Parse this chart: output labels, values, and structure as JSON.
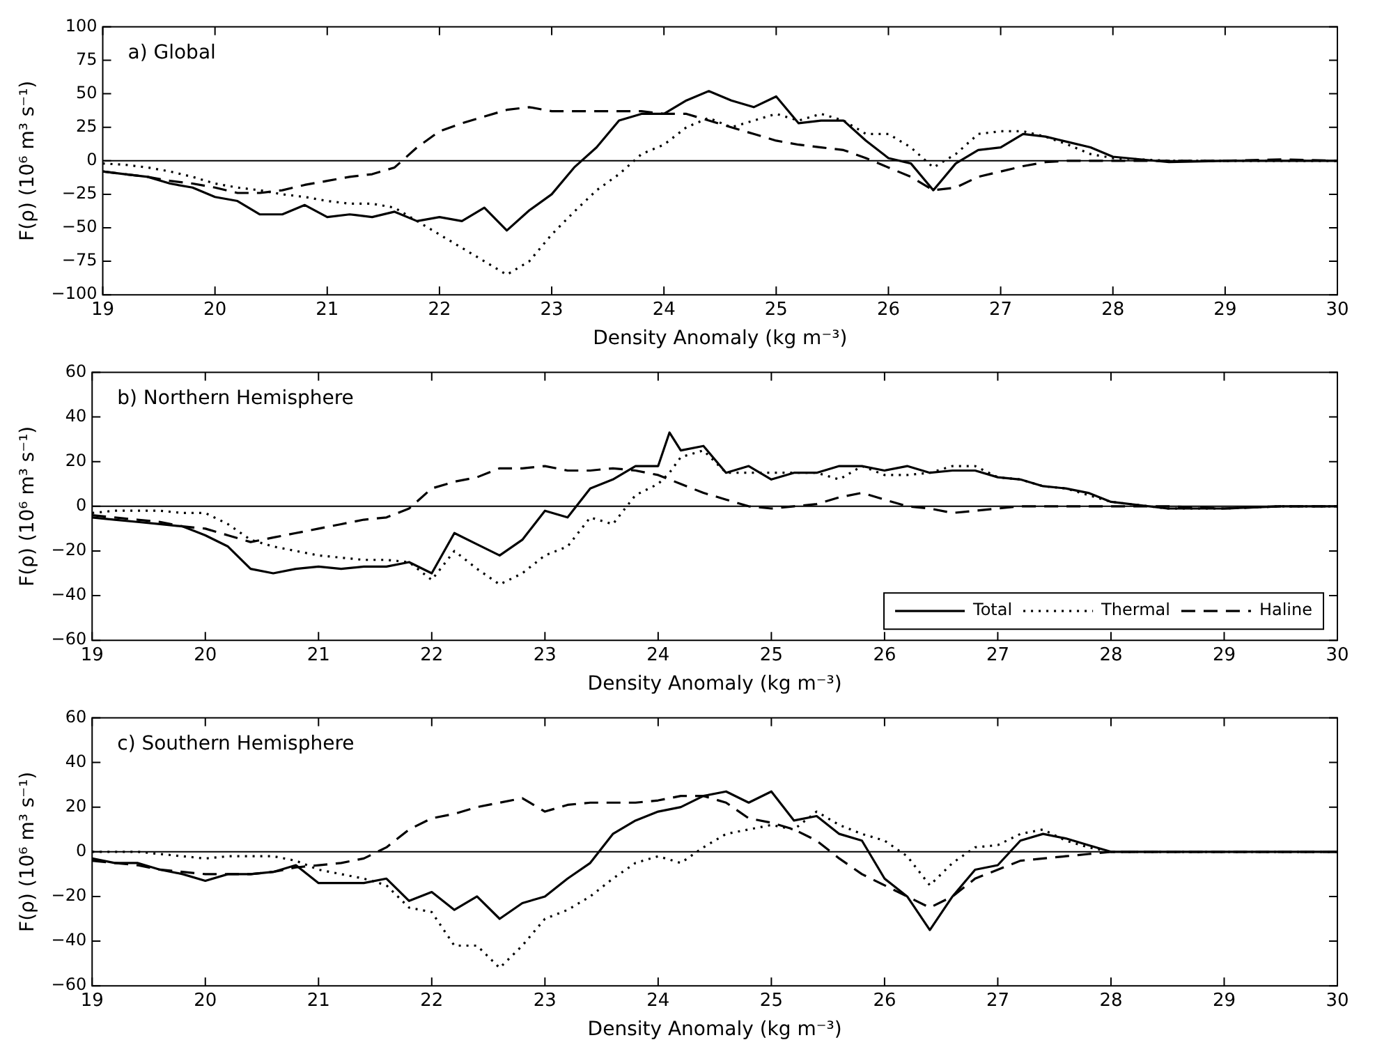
{
  "chart_data": [
    {
      "type": "line",
      "xlabel": "Density Anomaly (kg m⁻³)",
      "ylabel": "F(ρ) (10⁶ m³ s⁻¹)",
      "annotations": [
        "a) Global"
      ],
      "x": [
        19,
        19.2,
        19.4,
        19.6,
        19.8,
        20,
        20.2,
        20.4,
        20.6,
        20.8,
        21,
        21.2,
        21.4,
        21.6,
        21.8,
        22,
        22.2,
        22.4,
        22.6,
        22.8,
        23,
        23.2,
        23.4,
        23.6,
        23.8,
        24,
        24.2,
        24.4,
        24.6,
        24.8,
        25,
        25.2,
        25.4,
        25.6,
        25.8,
        26,
        26.2,
        26.4,
        26.6,
        26.8,
        27,
        27.2,
        27.4,
        27.6,
        27.8,
        28,
        28.5,
        29,
        29.5,
        30
      ],
      "xlim": [
        19,
        30
      ],
      "xticks": [
        19,
        20,
        21,
        22,
        23,
        24,
        25,
        26,
        27,
        28,
        29,
        30
      ],
      "ylim": [
        -100,
        100
      ],
      "yticks": [
        -100,
        -75,
        -50,
        -25,
        0,
        25,
        50,
        75,
        100
      ],
      "grid": false,
      "ref_lines": [
        {
          "axis": "y",
          "value": 0,
          "color": "#000000"
        }
      ],
      "series": [
        {
          "color": "#000000",
          "line_style": "solid",
          "values": [
            -8,
            -10,
            -12,
            -17,
            -20,
            -27,
            -30,
            -40,
            -40,
            -33,
            -42,
            -40,
            -42,
            -38,
            -45,
            -42,
            -45,
            -35,
            -52,
            -37,
            -25,
            -5,
            10,
            30,
            35,
            35,
            45,
            52,
            45,
            40,
            48,
            28,
            30,
            30,
            15,
            2,
            -2,
            -22,
            -2,
            8,
            10,
            20,
            18,
            14,
            10,
            3,
            -1,
            0,
            0,
            0
          ]
        },
        {
          "color": "#000000",
          "line_style": "dotted",
          "values": [
            -2,
            -3,
            -5,
            -8,
            -12,
            -17,
            -20,
            -22,
            -25,
            -27,
            -30,
            -32,
            -32,
            -35,
            -45,
            -55,
            -65,
            -75,
            -85,
            -75,
            -55,
            -38,
            -22,
            -10,
            5,
            12,
            25,
            32,
            25,
            30,
            35,
            30,
            35,
            30,
            20,
            20,
            10,
            -5,
            5,
            20,
            22,
            22,
            18,
            12,
            5,
            2,
            0,
            0,
            0,
            0
          ]
        },
        {
          "color": "#000000",
          "line_style": "dashed",
          "values": [
            -8,
            -10,
            -12,
            -15,
            -17,
            -20,
            -24,
            -24,
            -22,
            -18,
            -15,
            -12,
            -10,
            -5,
            10,
            22,
            28,
            33,
            38,
            40,
            37,
            37,
            37,
            37,
            37,
            35,
            35,
            30,
            25,
            20,
            15,
            12,
            10,
            8,
            2,
            -5,
            -12,
            -22,
            -20,
            -12,
            -8,
            -4,
            -1,
            0,
            0,
            0,
            0,
            0,
            1,
            0
          ]
        }
      ]
    },
    {
      "type": "line",
      "xlabel": "Density Anomaly (kg m⁻³)",
      "ylabel": "F(ρ) (10⁶ m³ s⁻¹)",
      "annotations": [
        "b) Northern Hemisphere"
      ],
      "legend": "bottom right",
      "x": [
        19,
        19.2,
        19.4,
        19.6,
        19.8,
        20,
        20.2,
        20.4,
        20.6,
        20.8,
        21,
        21.2,
        21.4,
        21.6,
        21.8,
        22,
        22.2,
        22.4,
        22.6,
        22.8,
        23,
        23.2,
        23.4,
        23.6,
        23.8,
        24,
        24.1,
        24.2,
        24.4,
        24.6,
        24.8,
        25,
        25.2,
        25.4,
        25.6,
        25.8,
        26,
        26.2,
        26.4,
        26.6,
        26.8,
        27,
        27.2,
        27.4,
        27.6,
        27.8,
        28,
        28.5,
        29,
        29.5,
        30
      ],
      "xlim": [
        19,
        30
      ],
      "xticks": [
        19,
        20,
        21,
        22,
        23,
        24,
        25,
        26,
        27,
        28,
        29,
        30
      ],
      "ylim": [
        -60,
        60
      ],
      "yticks": [
        -60,
        -40,
        -20,
        0,
        20,
        40,
        60
      ],
      "grid": false,
      "ref_lines": [
        {
          "axis": "y",
          "value": 0,
          "color": "#000000"
        }
      ],
      "series": [
        {
          "name": "Total",
          "color": "#000000",
          "line_style": "solid",
          "values": [
            -5,
            -6,
            -7,
            -8,
            -9,
            -13,
            -18,
            -28,
            -30,
            -28,
            -27,
            -28,
            -27,
            -27,
            -25,
            -30,
            -12,
            -17,
            -22,
            -15,
            -2,
            -5,
            8,
            12,
            18,
            18,
            33,
            25,
            27,
            15,
            18,
            12,
            15,
            15,
            18,
            18,
            16,
            18,
            15,
            16,
            16,
            13,
            12,
            9,
            8,
            6,
            2,
            -1,
            -1,
            0,
            0
          ]
        },
        {
          "name": "Thermal",
          "color": "#000000",
          "line_style": "dotted",
          "values": [
            -3,
            -2,
            -2,
            -2,
            -3,
            -3,
            -8,
            -15,
            -18,
            -20,
            -22,
            -23,
            -24,
            -24,
            -25,
            -33,
            -20,
            -28,
            -35,
            -30,
            -22,
            -18,
            -5,
            -8,
            5,
            10,
            15,
            22,
            25,
            15,
            15,
            15,
            15,
            15,
            12,
            18,
            14,
            14,
            15,
            18,
            18,
            13,
            12,
            9,
            8,
            5,
            2,
            -1,
            -1,
            0,
            0
          ]
        },
        {
          "name": "Haline",
          "color": "#000000",
          "line_style": "dashed",
          "values": [
            -4,
            -5,
            -6,
            -7,
            -9,
            -10,
            -13,
            -16,
            -14,
            -12,
            -10,
            -8,
            -6,
            -5,
            -1,
            8,
            11,
            13,
            17,
            17,
            18,
            16,
            16,
            17,
            16,
            14,
            12,
            10,
            6,
            3,
            0,
            -1,
            0,
            1,
            4,
            6,
            3,
            0,
            -1,
            -3,
            -2,
            -1,
            0,
            0,
            0,
            0,
            0,
            0,
            -1,
            0,
            0
          ]
        }
      ]
    },
    {
      "type": "line",
      "xlabel": "Density Anomaly (kg m⁻³)",
      "ylabel": "F(ρ) (10⁶ m³ s⁻¹)",
      "annotations": [
        "c) Southern Hemisphere"
      ],
      "x": [
        19,
        19.2,
        19.4,
        19.6,
        19.8,
        20,
        20.2,
        20.4,
        20.6,
        20.8,
        21,
        21.2,
        21.4,
        21.6,
        21.8,
        22,
        22.2,
        22.4,
        22.6,
        22.8,
        23,
        23.2,
        23.4,
        23.6,
        23.8,
        24,
        24.2,
        24.4,
        24.6,
        24.8,
        25,
        25.2,
        25.4,
        25.6,
        25.8,
        26,
        26.2,
        26.4,
        26.6,
        26.8,
        27,
        27.2,
        27.4,
        27.6,
        27.8,
        28,
        28.5,
        29,
        29.5,
        30
      ],
      "xlim": [
        19,
        30
      ],
      "xticks": [
        19,
        20,
        21,
        22,
        23,
        24,
        25,
        26,
        27,
        28,
        29,
        30
      ],
      "ylim": [
        -60,
        60
      ],
      "yticks": [
        -60,
        -40,
        -20,
        0,
        20,
        40,
        60
      ],
      "grid": false,
      "ref_lines": [
        {
          "axis": "y",
          "value": 0,
          "color": "#000000"
        }
      ],
      "series": [
        {
          "color": "#000000",
          "line_style": "solid",
          "values": [
            -3,
            -5,
            -5,
            -8,
            -10,
            -13,
            -10,
            -10,
            -9,
            -6,
            -14,
            -14,
            -14,
            -12,
            -22,
            -18,
            -26,
            -20,
            -30,
            -23,
            -20,
            -12,
            -5,
            8,
            14,
            18,
            20,
            25,
            27,
            22,
            27,
            14,
            16,
            8,
            5,
            -12,
            -20,
            -35,
            -20,
            -8,
            -6,
            5,
            8,
            6,
            3,
            0,
            0,
            0,
            0,
            0
          ]
        },
        {
          "color": "#000000",
          "line_style": "dotted",
          "values": [
            0,
            0,
            0,
            -1,
            -2,
            -3,
            -2,
            -2,
            -2,
            -4,
            -8,
            -10,
            -12,
            -15,
            -25,
            -27,
            -42,
            -42,
            -52,
            -42,
            -30,
            -26,
            -20,
            -12,
            -5,
            -2,
            -5,
            2,
            8,
            10,
            12,
            10,
            18,
            12,
            8,
            5,
            -2,
            -15,
            -5,
            2,
            3,
            8,
            10,
            5,
            2,
            0,
            0,
            0,
            0,
            0
          ]
        },
        {
          "color": "#000000",
          "line_style": "dashed",
          "values": [
            -4,
            -5,
            -6,
            -8,
            -9,
            -10,
            -10,
            -10,
            -9,
            -7,
            -6,
            -5,
            -3,
            2,
            10,
            15,
            17,
            20,
            22,
            24,
            18,
            21,
            22,
            22,
            22,
            23,
            25,
            25,
            22,
            15,
            13,
            10,
            5,
            -3,
            -10,
            -15,
            -20,
            -25,
            -20,
            -12,
            -8,
            -4,
            -3,
            -2,
            -1,
            0,
            0,
            0,
            0,
            0
          ]
        }
      ]
    }
  ]
}
